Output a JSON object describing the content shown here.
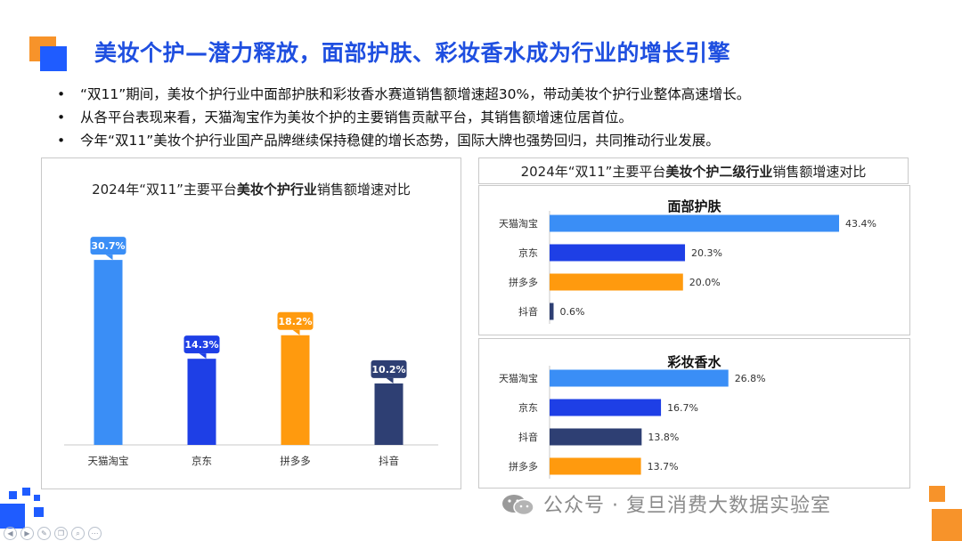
{
  "title": "美妆个护—潜力释放，面部护肤、彩妆香水成为行业的增长引擎",
  "bullets": [
    "“双11”期间，美妆个护行业中面部护肤和彩妆香水赛道销售额增速超30%，带动美妆个护行业整体高速增长。",
    "从各平台表现来看，天猫淘宝作为美妆个护的主要销售贡献平台，其销售额增速位居首位。",
    "今年“双11”美妆个护行业国产品牌继续保持稳健的增长态势，国际大牌也强势回归，共同推动行业发展。"
  ],
  "bullet_symbol": "•",
  "watermark": "公众号 · 复旦消费大数据实验室",
  "colors": {
    "title_blue": "#1F4FE0",
    "light_blue": "#3A8EF6",
    "royal_blue": "#1E3FE6",
    "orange": "#FF9A0E",
    "navy": "#2E3F73",
    "accent_orange": "#F7932A",
    "accent_blue": "#1F5CFF"
  },
  "chart_data": [
    {
      "type": "bar",
      "title_pre": "2024年“双11”主要平台",
      "title_bold": "美妆个护行业",
      "title_post": "销售额增速对比",
      "categories": [
        "天猫淘宝",
        "京东",
        "拼多多",
        "抖音"
      ],
      "values": [
        30.7,
        14.3,
        18.2,
        10.2
      ],
      "labels": [
        "30.7%",
        "14.3%",
        "18.2%",
        "10.2%"
      ],
      "colors": [
        "#3A8EF6",
        "#1E3FE6",
        "#FF9A0E",
        "#2E3F73"
      ],
      "ylim": [
        0,
        35
      ],
      "grid": false,
      "legend": "none"
    },
    {
      "type": "bar",
      "orientation": "horizontal",
      "title_pre": "2024年“双11”主要平台",
      "title_bold": "美妆个护二级行业",
      "title_post": "销售额增速对比",
      "subtitle": "面部护肤",
      "categories": [
        "天猫淘宝",
        "京东",
        "拼多多",
        "抖音"
      ],
      "values": [
        43.4,
        20.3,
        20.0,
        0.6
      ],
      "labels": [
        "43.4%",
        "20.3%",
        "20.0%",
        "0.6%"
      ],
      "colors": [
        "#3A8EF6",
        "#1E3FE6",
        "#FF9A0E",
        "#2E3F73"
      ],
      "xlim": [
        0,
        45
      ]
    },
    {
      "type": "bar",
      "orientation": "horizontal",
      "subtitle": "彩妆香水",
      "categories": [
        "天猫淘宝",
        "京东",
        "抖音",
        "拼多多"
      ],
      "values": [
        26.8,
        16.7,
        13.8,
        13.7
      ],
      "labels": [
        "26.8%",
        "16.7%",
        "13.8%",
        "13.7%"
      ],
      "colors": [
        "#3A8EF6",
        "#1E3FE6",
        "#2E3F73",
        "#FF9A0E"
      ],
      "xlim": [
        0,
        45
      ]
    }
  ]
}
